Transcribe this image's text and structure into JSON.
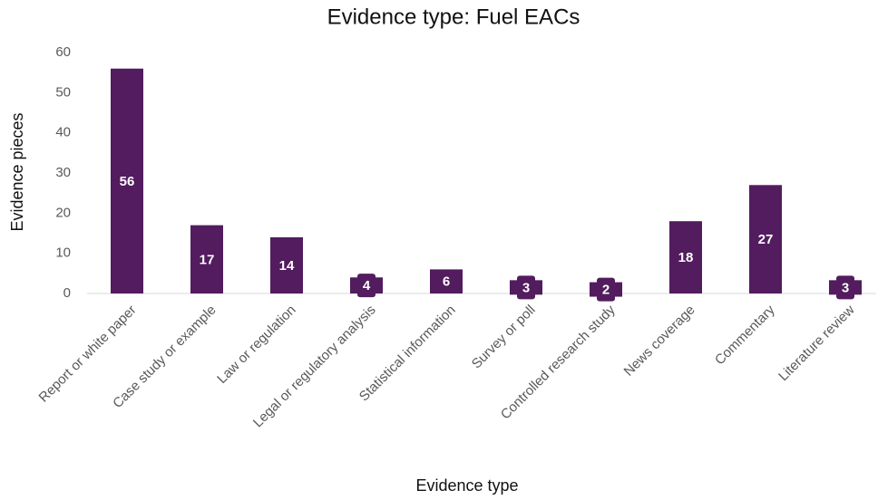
{
  "chart_data": {
    "type": "bar",
    "title": "Evidence type: Fuel EACs",
    "x_label": "Evidence type",
    "y_label": "Evidence pieces",
    "categories": [
      "Report or white paper",
      "Case study or example",
      "Law or regulation",
      "Legal or regulatory analysis",
      "Statistical information",
      "Survey or poll",
      "Controlled research study",
      "News coverage",
      "Commentary",
      "Literature review"
    ],
    "values": [
      56,
      17,
      14,
      4,
      6,
      3,
      2,
      18,
      27,
      3
    ],
    "color": "#521c5e",
    "ylim": [
      0,
      60
    ],
    "yticks": [
      0,
      10,
      20,
      30,
      40,
      50,
      60
    ],
    "grid": false
  }
}
